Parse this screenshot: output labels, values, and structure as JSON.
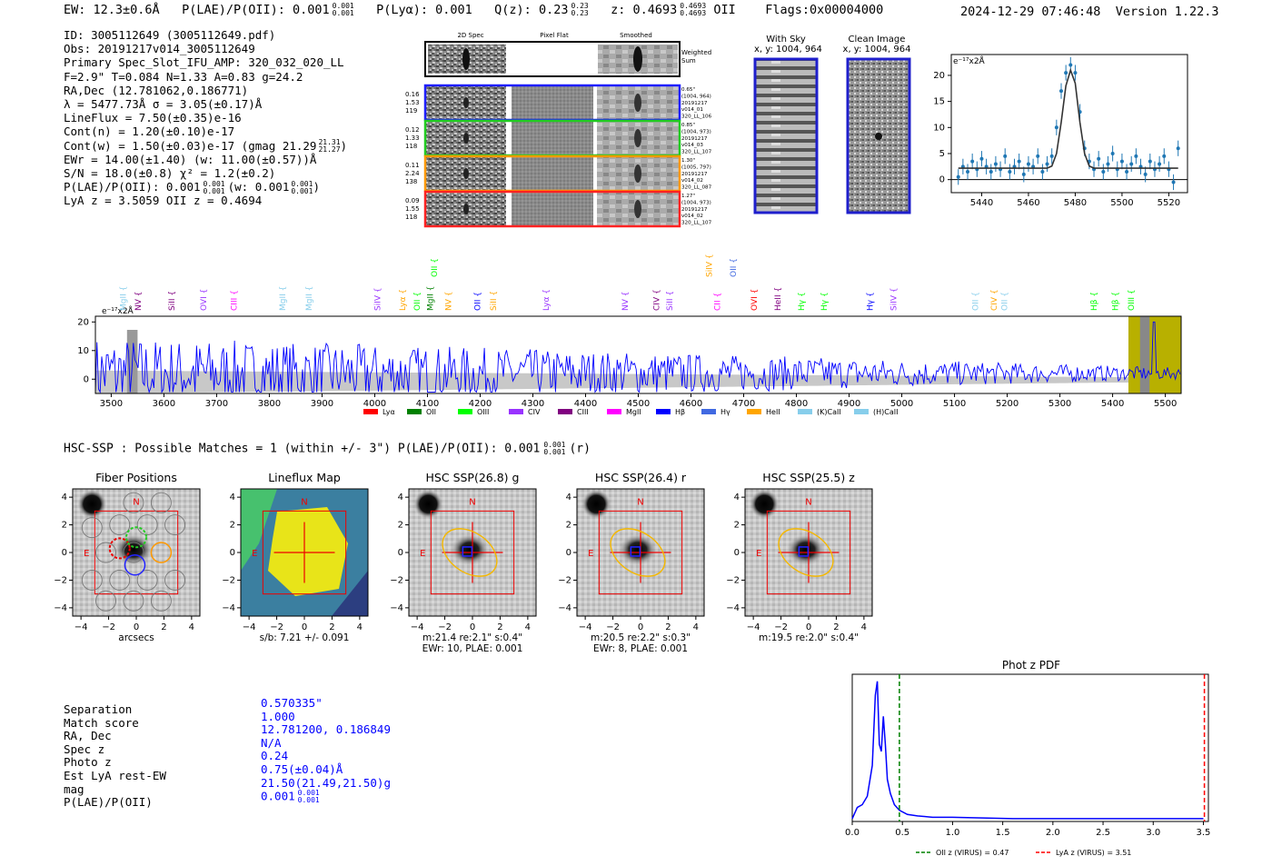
{
  "header": {
    "ew": "EW: 12.3±0.6Å",
    "plae_label": "P(LAE)/P(OII): 0.001",
    "plae_sup": "0.001",
    "plae_sub": "0.001",
    "plya": "P(Lyα): 0.001",
    "qz_label": "Q(z): 0.23",
    "qz_sup": "0.23",
    "qz_sub": "0.23",
    "z_label": "z: 0.4693",
    "z_sup": "0.4693",
    "z_sub": "0.4693",
    "z_line": "OII",
    "flags": "Flags:0x00004000",
    "datetime": "2024-12-29 07:46:48",
    "version": "Version 1.22.3"
  },
  "info": {
    "id": "ID: 3005112649 (3005112649.pdf)",
    "obs": "Obs: 20191217v014_3005112649",
    "primary": "Primary Spec_Slot_IFU_AMP: 320_032_020_LL",
    "params": "F=2.9\"  T=0.084  N=1.33  A=0.83  g=24.2",
    "radec": "RA,Dec (12.781062,0.186771)",
    "lambda": "λ = 5477.73Å  σ = 3.05(±0.17)Å",
    "lineflux": "LineFlux = 7.50(±0.35)e-16",
    "contn": "Cont(n) = 1.20(±0.10)e-17",
    "contw": "Cont(w) = 1.50(±0.03)e-17 (gmag 21.29",
    "contw_sup": "21.31",
    "contw_sub": "21.27",
    "ewr": "EWr = 14.00(±1.40) (w: 11.00(±0.57))Å",
    "sn": "S/N = 18.0(±0.8)  χ² = 1.2(±0.2)",
    "plae": "P(LAE)/P(OII): 0.001",
    "plae_sup": "0.001",
    "plae_sub": "0.001",
    "plae_w": "(w: 0.001",
    "plae_w_sup": "0.001",
    "plae_w_sub": "0.001",
    "lyaz": "LyA z = 3.5059  OII z = 0.4694"
  },
  "cutouts": {
    "col_2d": "2D Spec",
    "col_flat": "Pixel Flat",
    "col_smooth": "Smoothed",
    "weighted": "Weighted",
    "weighted2": "Sum",
    "rows": [
      {
        "n1": "0.16",
        "n2": "1.53",
        "n3": "119",
        "d1": "0.65\"",
        "d2": "(1004, 964)",
        "d3": "20191217",
        "d4": "v014_01",
        "d5": "320_LL_106",
        "color": "#1f1fff"
      },
      {
        "n1": "0.12",
        "n2": "1.33",
        "n3": "118",
        "d1": "0.85\"",
        "d2": "(1004, 973)",
        "d3": "20191217",
        "d4": "v014_03",
        "d5": "320_LL_107",
        "color": "#22cc22"
      },
      {
        "n1": "0.11",
        "n2": "2.24",
        "n3": "138",
        "d1": "1.30\"",
        "d2": "(1005, 797)",
        "d3": "20191217",
        "d4": "v014_02",
        "d5": "320_LL_087",
        "color": "#ff9900"
      },
      {
        "n1": "0.09",
        "n2": "1.55",
        "n3": "118",
        "d1": "1.27\"",
        "d2": "(1004, 973)",
        "d3": "20191217",
        "d4": "v014_02",
        "d5": "320_LL_107",
        "color": "#ff2222"
      }
    ],
    "with_sky": "With Sky",
    "with_sky_xy": "x, y: 1004, 964",
    "clean": "Clean Image",
    "clean_xy": "x, y: 1004, 964"
  },
  "hsc": {
    "title": "HSC-SSP : Possible Matches = 1 (within +/- 3\")  P(LAE)/P(OII): 0.001",
    "sup": "0.001",
    "sub": "0.001",
    "band": "(r)"
  },
  "panels": [
    {
      "title": "Fiber Positions",
      "cap1": "arcsecs",
      "cap2": ""
    },
    {
      "title": "Lineflux Map",
      "cap1": "s/b: 7.21 +/- 0.091",
      "cap2": ""
    },
    {
      "title": "HSC SSP(26.8) g",
      "cap1": "m:21.4  re:2.1\"  s:0.4\"",
      "cap2": "EWr: 10, PLAE: 0.001"
    },
    {
      "title": "HSC SSP(26.4) r",
      "cap1": "m:20.5  re:2.2\"  s:0.3\"",
      "cap2": "EWr: 8, PLAE: 0.001"
    },
    {
      "title": "HSC SSP(25.5) z",
      "cap1": "m:19.5  re:2.0\"  s:0.4\"",
      "cap2": ""
    }
  ],
  "match_table": {
    "labels": [
      "Separation",
      "Match score",
      "RA, Dec",
      "Spec z",
      "Photo z",
      "Est LyA rest-EW",
      "mag",
      "P(LAE)/P(OII)"
    ],
    "values": [
      "0.570335\"",
      "1.000",
      "12.781200, 0.186849",
      "N/A",
      "0.24",
      "0.75(±0.04)Å",
      "21.50(21.49,21.50)g",
      "0.001"
    ],
    "plae_sup": "0.001",
    "plae_sub": "0.001"
  },
  "chart_data": [
    {
      "type": "line",
      "title": "",
      "ylabel": "e⁻¹⁷x2Å",
      "x": [
        5430,
        5432,
        5434,
        5436,
        5438,
        5440,
        5442,
        5444,
        5446,
        5448,
        5450,
        5452,
        5454,
        5456,
        5458,
        5460,
        5462,
        5464,
        5466,
        5468,
        5470,
        5472,
        5474,
        5476,
        5478,
        5480,
        5482,
        5484,
        5486,
        5488,
        5490,
        5492,
        5494,
        5496,
        5498,
        5500,
        5502,
        5504,
        5506,
        5508,
        5510,
        5512,
        5514,
        5516,
        5518,
        5520,
        5522,
        5524
      ],
      "series": [
        {
          "name": "data",
          "values": [
            0.5,
            2.5,
            1.5,
            3.5,
            2.0,
            4.0,
            2.5,
            1.5,
            3.0,
            2.0,
            4.5,
            1.5,
            2.5,
            3.5,
            1.0,
            3.0,
            2.5,
            4.5,
            1.5,
            3.0,
            4.5,
            10.0,
            17.0,
            20.5,
            22.0,
            20.5,
            13.0,
            6.0,
            3.5,
            2.0,
            4.0,
            1.5,
            3.0,
            5.0,
            2.0,
            3.5,
            1.5,
            3.0,
            4.5,
            2.5,
            1.0,
            3.5,
            2.0,
            3.0,
            4.5,
            2.0,
            -0.5,
            6.0
          ]
        },
        {
          "name": "fit",
          "values": [
            2.2,
            2.2,
            2.2,
            2.2,
            2.2,
            2.2,
            2.2,
            2.2,
            2.2,
            2.2,
            2.2,
            2.2,
            2.2,
            2.2,
            2.2,
            2.2,
            2.2,
            2.2,
            2.2,
            2.2,
            2.6,
            5.0,
            11.0,
            18.0,
            21.0,
            18.5,
            11.0,
            5.0,
            2.6,
            2.2,
            2.2,
            2.2,
            2.2,
            2.2,
            2.2,
            2.2,
            2.2,
            2.2,
            2.2,
            2.2,
            2.2,
            2.2,
            2.2,
            2.2,
            2.2,
            2.2,
            2.2,
            2.2
          ]
        }
      ],
      "xlim": [
        5427,
        5528
      ],
      "ylim": [
        -2.5,
        24
      ],
      "xticks": [
        5440,
        5460,
        5480,
        5500,
        5520
      ],
      "yticks": [
        0,
        5,
        10,
        15,
        20
      ]
    },
    {
      "type": "line",
      "title": "",
      "ylabel": "e⁻¹⁷x2Å",
      "xlim": [
        3470,
        5530
      ],
      "ylim": [
        -5,
        22
      ],
      "xticks": [
        3500,
        3600,
        3700,
        3800,
        3900,
        4000,
        4100,
        4200,
        4300,
        4400,
        4500,
        4600,
        4700,
        4800,
        4900,
        5000,
        5100,
        5200,
        5300,
        5400,
        5500
      ],
      "yticks": [
        0,
        10,
        20
      ],
      "legend": [
        "Lyα",
        "OII",
        "OIII",
        "CIV",
        "CIII",
        "MgII",
        "Hβ",
        "Hγ",
        "HeII",
        "(K)CaII",
        "(H)CaII"
      ],
      "legend_colors": [
        "#ff0000",
        "#008000",
        "#00ff00",
        "#9933ff",
        "#800080",
        "#ff00ff",
        "#0000ff",
        "#4169e1",
        "#ffa500",
        "#87ceeb",
        "#87ceeb"
      ],
      "line_markers": [
        {
          "x": 3528,
          "label": "MgII",
          "color": "#87ceeb"
        },
        {
          "x": 3556,
          "label": "NV",
          "color": "#800080"
        },
        {
          "x": 3620,
          "label": "SiII",
          "color": "#800080"
        },
        {
          "x": 3680,
          "label": "OVI",
          "color": "#9933ff"
        },
        {
          "x": 3738,
          "label": "CIII",
          "color": "#ff00ff"
        },
        {
          "x": 3830,
          "label": "MgII",
          "color": "#87ceeb"
        },
        {
          "x": 3880,
          "label": "MgII",
          "color": "#87ceeb"
        },
        {
          "x": 4010,
          "label": "SiIV",
          "color": "#9933ff"
        },
        {
          "x": 4058,
          "label": "Lyα",
          "color": "#ffa500"
        },
        {
          "x": 4085,
          "label": "OII",
          "color": "#00ff00"
        },
        {
          "x": 4110,
          "label": "MgII",
          "color": "#008000"
        },
        {
          "x": 4145,
          "label": "NV",
          "color": "#ffa500"
        },
        {
          "x": 4200,
          "label": "OII",
          "color": "#0000ff"
        },
        {
          "x": 4230,
          "label": "SiII",
          "color": "#ffa500"
        },
        {
          "x": 4330,
          "label": "Lyα",
          "color": "#9933ff"
        },
        {
          "x": 4480,
          "label": "NV",
          "color": "#9933ff"
        },
        {
          "x": 4540,
          "label": "CIV",
          "color": "#800080"
        },
        {
          "x": 4565,
          "label": "SiII",
          "color": "#9933ff"
        },
        {
          "x": 4655,
          "label": "CII",
          "color": "#ff00ff"
        },
        {
          "x": 4725,
          "label": "OVI",
          "color": "#ff0000"
        },
        {
          "x": 4770,
          "label": "HeII",
          "color": "#800080"
        },
        {
          "x": 4815,
          "label": "Hγ",
          "color": "#00ff00"
        },
        {
          "x": 4858,
          "label": "Hγ",
          "color": "#00ff00"
        },
        {
          "x": 4945,
          "label": "Hγ",
          "color": "#0000ff"
        },
        {
          "x": 4990,
          "label": "SiIV",
          "color": "#9933ff"
        },
        {
          "x": 5145,
          "label": "OII",
          "color": "#87ceeb"
        },
        {
          "x": 5180,
          "label": "CIV",
          "color": "#ffa500"
        },
        {
          "x": 5200,
          "label": "OII",
          "color": "#87ceeb"
        },
        {
          "x": 5370,
          "label": "Hβ",
          "color": "#00ff00"
        },
        {
          "x": 5410,
          "label": "Hβ",
          "color": "#00ff00"
        },
        {
          "x": 5440,
          "label": "OIII",
          "color": "#00ff00"
        }
      ],
      "upper_markers": [
        {
          "x": 4118,
          "label": "OII",
          "color": "#00ff00"
        },
        {
          "x": 4640,
          "label": "SiIV",
          "color": "#ffa500"
        },
        {
          "x": 4685,
          "label": "OII",
          "color": "#4169e1"
        }
      ]
    },
    {
      "type": "line",
      "title": "Phot z PDF",
      "xlim": [
        0,
        3.55
      ],
      "xticks": [
        0.0,
        0.5,
        1.0,
        1.5,
        2.0,
        2.5,
        3.0,
        3.5
      ],
      "x": [
        0.0,
        0.05,
        0.1,
        0.15,
        0.2,
        0.23,
        0.25,
        0.27,
        0.29,
        0.31,
        0.33,
        0.35,
        0.38,
        0.42,
        0.47,
        0.55,
        0.65,
        0.8,
        1.0,
        1.3,
        1.6,
        2.0,
        2.5,
        3.0,
        3.5
      ],
      "values": [
        0.02,
        0.1,
        0.12,
        0.18,
        0.4,
        0.9,
        1.0,
        0.55,
        0.5,
        0.75,
        0.55,
        0.3,
        0.2,
        0.12,
        0.08,
        0.05,
        0.04,
        0.03,
        0.03,
        0.025,
        0.02,
        0.02,
        0.02,
        0.02,
        0.02
      ],
      "vlines": [
        {
          "x": 0.47,
          "label": "OII z (VIRUS) = 0.47",
          "color": "#008000"
        },
        {
          "x": 3.51,
          "label": "LyA z (VIRUS) = 3.51",
          "color": "#ff0000"
        }
      ]
    }
  ]
}
